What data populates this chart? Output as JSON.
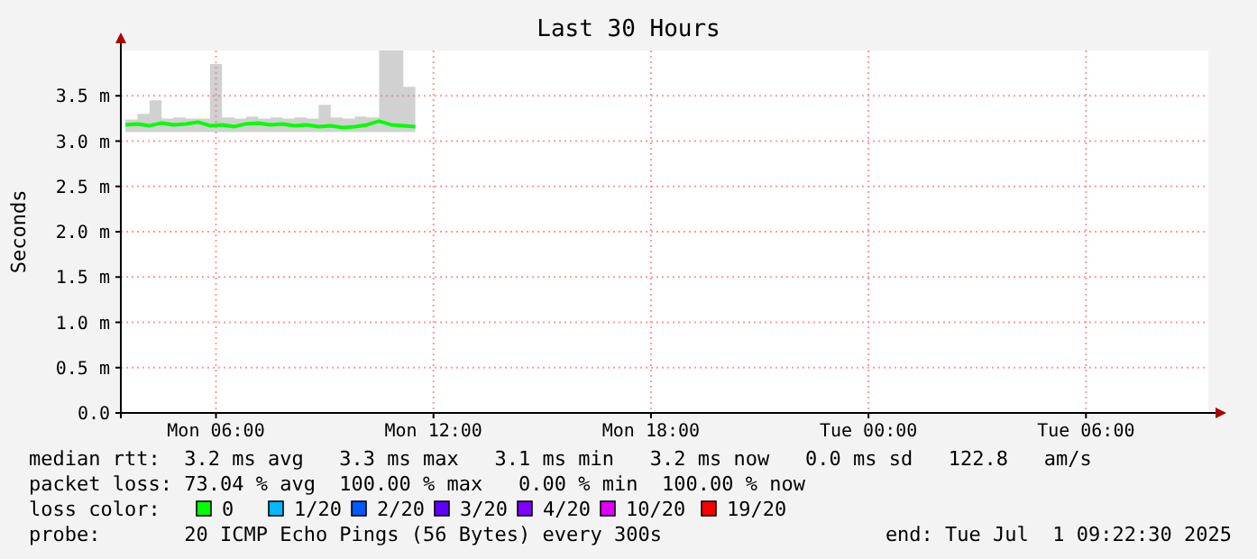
{
  "chart_data": {
    "type": "line",
    "title": "Last 30 Hours",
    "ylabel": "Seconds",
    "x": [
      "2025-06-30T03:30",
      "2025-06-30T03:50",
      "2025-06-30T04:10",
      "2025-06-30T04:30",
      "2025-06-30T04:50",
      "2025-06-30T05:10",
      "2025-06-30T05:30",
      "2025-06-30T05:50",
      "2025-06-30T06:10",
      "2025-06-30T06:30",
      "2025-06-30T06:50",
      "2025-06-30T07:10",
      "2025-06-30T07:30",
      "2025-06-30T07:50",
      "2025-06-30T08:10",
      "2025-06-30T08:30",
      "2025-06-30T08:50",
      "2025-06-30T09:10",
      "2025-06-30T09:30",
      "2025-06-30T09:50",
      "2025-06-30T10:10",
      "2025-06-30T10:30",
      "2025-06-30T10:50",
      "2025-06-30T11:10",
      "2025-06-30T11:30"
    ],
    "series": [
      {
        "color": "#00ff00",
        "values": [
          3.18,
          3.19,
          3.17,
          3.2,
          3.18,
          3.19,
          3.21,
          3.17,
          3.18,
          3.16,
          3.19,
          3.2,
          3.18,
          3.19,
          3.17,
          3.18,
          3.16,
          3.17,
          3.15,
          3.16,
          3.18,
          3.22,
          3.18,
          3.17,
          3.16
        ],
        "lower": [
          3.1,
          3.1,
          3.1,
          3.1,
          3.1,
          3.1,
          3.1,
          3.1,
          3.1,
          3.1,
          3.1,
          3.1,
          3.1,
          3.1,
          3.1,
          3.1,
          3.1,
          3.1,
          3.1,
          3.1,
          3.1,
          3.1,
          3.1,
          3.1,
          3.1
        ],
        "upper": [
          3.24,
          3.3,
          3.45,
          3.25,
          3.26,
          3.25,
          3.25,
          3.85,
          3.26,
          3.25,
          3.27,
          3.25,
          3.26,
          3.25,
          3.26,
          3.25,
          3.4,
          3.26,
          3.25,
          3.27,
          3.26,
          4.0,
          4.0,
          3.6,
          3.28
        ]
      }
    ],
    "xlim": [
      "2025-06-30T03:22:30",
      "2025-07-01T09:22:30"
    ],
    "xticks": [
      {
        "value": "2025-06-30T06:00",
        "label": "Mon 06:00"
      },
      {
        "value": "2025-06-30T12:00",
        "label": "Mon 12:00"
      },
      {
        "value": "2025-06-30T18:00",
        "label": "Mon 18:00"
      },
      {
        "value": "2025-07-01T00:00",
        "label": "Tue 00:00"
      },
      {
        "value": "2025-07-01T06:00",
        "label": "Tue 06:00"
      }
    ],
    "ylim": [
      0,
      4
    ],
    "yticks": [
      {
        "value": 0,
        "label": "0.0"
      },
      {
        "value": 0.5,
        "label": "0.5 m"
      },
      {
        "value": 1,
        "label": "1.0 m"
      },
      {
        "value": 1.5,
        "label": "1.5 m"
      },
      {
        "value": 2,
        "label": "2.0 m"
      },
      {
        "value": 2.5,
        "label": "2.5 m"
      },
      {
        "value": 3,
        "label": "3.0 m"
      },
      {
        "value": 3.5,
        "label": "3.5 m"
      }
    ],
    "grid": true,
    "annotations": [
      "median rtt:  3.2 ms avg   3.3 ms max   3.1 ms min   3.2 ms now   0.0 ms sd   122.8   am/s",
      "packet loss: 73.04 % avg  100.00 % max   0.00 % min  100.00 % now",
      "loss color:",
      "0",
      "1/20",
      "2/20",
      "3/20",
      "4/20",
      "10/20",
      "19/20",
      "probe:       20 ICMP Echo Pings (56 Bytes) every 300s",
      "end: Tue Jul  1 09:22:30 2025"
    ]
  }
}
